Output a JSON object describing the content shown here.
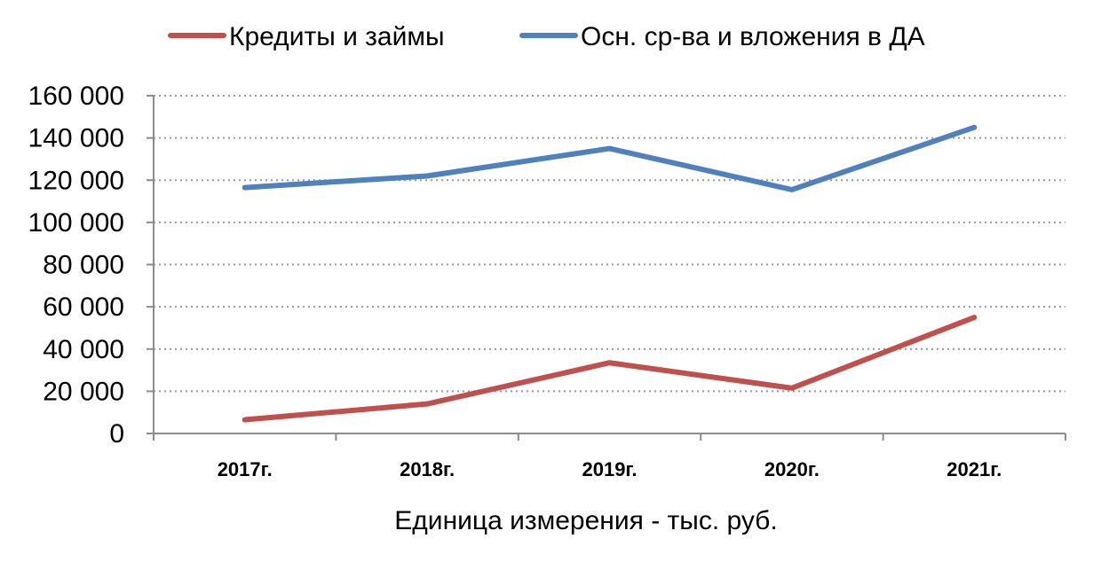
{
  "chart_data": {
    "type": "line",
    "categories": [
      "2017г.",
      "2018г.",
      "2019г.",
      "2020г.",
      "2021г."
    ],
    "series": [
      {
        "name": "Кредиты и займы",
        "color": "#c0504d",
        "values": [
          6500,
          14000,
          33500,
          21500,
          55000
        ]
      },
      {
        "name": "Осн. ср-ва и вложения в ДА",
        "color": "#4f81bd",
        "values": [
          116500,
          122000,
          135000,
          115500,
          145000
        ]
      }
    ],
    "ylim": [
      0,
      160000
    ],
    "yticks": [
      0,
      20000,
      40000,
      60000,
      80000,
      100000,
      120000,
      140000,
      160000
    ],
    "ytick_labels": [
      "0",
      "20 000",
      "40 000",
      "60 000",
      "80 000",
      "100 000",
      "120 000",
      "140 000",
      "160 000"
    ],
    "xlabel": "Единица измерения - тыс. руб.",
    "ylabel": "",
    "grid": "horizontal-dotted",
    "legend_position": "top"
  }
}
